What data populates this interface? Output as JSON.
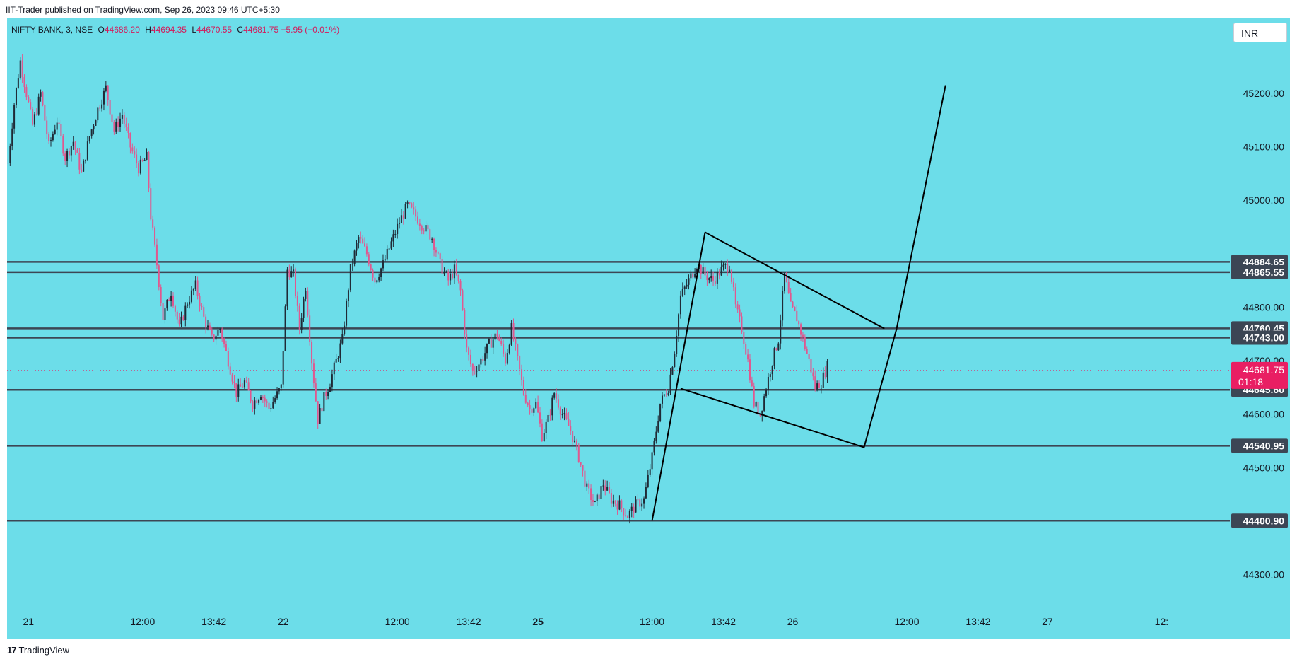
{
  "publish_info": "IIT-Trader published on TradingView.com, Sep 26, 2023 09:46 UTC+5:30",
  "symbol": {
    "name": "NIFTY BANK, 3, NSE",
    "open_label": "O",
    "open": "44686.20",
    "high_label": "H",
    "high": "44694.35",
    "low_label": "L",
    "low": "44670.55",
    "close_label": "C",
    "close": "44681.75",
    "change": "−5.95 (−0.01%)"
  },
  "currency": "INR",
  "footer_brand": "TradingView",
  "colors": {
    "background": "#6cdde9",
    "candle_up": "#1f2a36",
    "candle_down": "#e0588f",
    "level_line": "#3c4654",
    "price_badge": "#e91e63",
    "drawing": "#000000"
  },
  "chart_data": {
    "type": "candlestick",
    "ylim": [
      44240,
      45340
    ],
    "y_ticks": [
      "45200.00",
      "45100.00",
      "45000.00",
      "44800.00",
      "44700.00",
      "44600.00",
      "44500.00",
      "44300.00"
    ],
    "y_tick_values": [
      45200,
      45100,
      45000,
      44800,
      44700,
      44600,
      44500,
      44300
    ],
    "x_ticks": [
      {
        "label": "21",
        "bold": false,
        "i": 10
      },
      {
        "label": "12:00",
        "bold": false,
        "i": 66
      },
      {
        "label": "13:42",
        "bold": false,
        "i": 101
      },
      {
        "label": "22",
        "bold": false,
        "i": 135
      },
      {
        "label": "12:00",
        "bold": false,
        "i": 191
      },
      {
        "label": "13:42",
        "bold": false,
        "i": 226
      },
      {
        "label": "25",
        "bold": true,
        "i": 260
      },
      {
        "label": "12:00",
        "bold": false,
        "i": 316
      },
      {
        "label": "13:42",
        "bold": false,
        "i": 351
      },
      {
        "label": "26",
        "bold": false,
        "i": 385
      },
      {
        "label": "12:00",
        "bold": false,
        "i": 441
      },
      {
        "label": "13:42",
        "bold": false,
        "i": 476
      },
      {
        "label": "27",
        "bold": false,
        "i": 510
      },
      {
        "label": "12:",
        "bold": false,
        "i": 566
      }
    ],
    "levels": [
      {
        "label": "44884.65",
        "value": 44884.65
      },
      {
        "label": "44865.55",
        "value": 44865.55
      },
      {
        "label": "44760.45",
        "value": 44760.45
      },
      {
        "label": "44743.00",
        "value": 44743.0
      },
      {
        "label": "44645.60",
        "value": 44645.6
      },
      {
        "label": "44540.95",
        "value": 44540.95
      },
      {
        "label": "44400.90",
        "value": 44400.9
      }
    ],
    "last_price": {
      "value": 44681.75,
      "label": "44681.75",
      "countdown": "01:18"
    },
    "price_path": [
      [
        0,
        45070
      ],
      [
        3,
        45180
      ],
      [
        6,
        45260
      ],
      [
        9,
        45200
      ],
      [
        12,
        45140
      ],
      [
        16,
        45200
      ],
      [
        20,
        45100
      ],
      [
        24,
        45150
      ],
      [
        28,
        45080
      ],
      [
        32,
        45110
      ],
      [
        36,
        45050
      ],
      [
        40,
        45120
      ],
      [
        44,
        45170
      ],
      [
        48,
        45210
      ],
      [
        52,
        45130
      ],
      [
        56,
        45160
      ],
      [
        60,
        45100
      ],
      [
        64,
        45060
      ],
      [
        68,
        45080
      ],
      [
        70,
        44970
      ],
      [
        73,
        44880
      ],
      [
        76,
        44780
      ],
      [
        80,
        44830
      ],
      [
        84,
        44760
      ],
      [
        88,
        44810
      ],
      [
        92,
        44840
      ],
      [
        96,
        44780
      ],
      [
        100,
        44740
      ],
      [
        104,
        44760
      ],
      [
        108,
        44700
      ],
      [
        112,
        44640
      ],
      [
        116,
        44660
      ],
      [
        120,
        44620
      ],
      [
        124,
        44640
      ],
      [
        128,
        44610
      ],
      [
        131,
        44630
      ],
      [
        134,
        44650
      ],
      [
        137,
        44870
      ],
      [
        140,
        44860
      ],
      [
        143,
        44760
      ],
      [
        146,
        44840
      ],
      [
        149,
        44700
      ],
      [
        152,
        44590
      ],
      [
        155,
        44630
      ],
      [
        158,
        44660
      ],
      [
        161,
        44700
      ],
      [
        164,
        44740
      ],
      [
        168,
        44870
      ],
      [
        172,
        44930
      ],
      [
        176,
        44900
      ],
      [
        180,
        44850
      ],
      [
        184,
        44880
      ],
      [
        188,
        44920
      ],
      [
        192,
        44960
      ],
      [
        196,
        44990
      ],
      [
        200,
        44970
      ],
      [
        204,
        44950
      ],
      [
        208,
        44930
      ],
      [
        212,
        44880
      ],
      [
        216,
        44850
      ],
      [
        219,
        44870
      ],
      [
        222,
        44830
      ],
      [
        225,
        44720
      ],
      [
        228,
        44680
      ],
      [
        232,
        44700
      ],
      [
        236,
        44730
      ],
      [
        240,
        44750
      ],
      [
        244,
        44700
      ],
      [
        247,
        44760
      ],
      [
        250,
        44700
      ],
      [
        253,
        44640
      ],
      [
        256,
        44610
      ],
      [
        259,
        44620
      ],
      [
        262,
        44560
      ],
      [
        265,
        44590
      ],
      [
        268,
        44640
      ],
      [
        272,
        44600
      ],
      [
        276,
        44570
      ],
      [
        280,
        44520
      ],
      [
        284,
        44460
      ],
      [
        288,
        44430
      ],
      [
        292,
        44470
      ],
      [
        296,
        44440
      ],
      [
        300,
        44430
      ],
      [
        304,
        44410
      ],
      [
        308,
        44430
      ],
      [
        312,
        44440
      ],
      [
        316,
        44520
      ],
      [
        320,
        44620
      ],
      [
        324,
        44650
      ],
      [
        327,
        44720
      ],
      [
        330,
        44820
      ],
      [
        334,
        44850
      ],
      [
        338,
        44880
      ],
      [
        342,
        44860
      ],
      [
        346,
        44850
      ],
      [
        350,
        44870
      ],
      [
        354,
        44880
      ],
      [
        357,
        44800
      ],
      [
        360,
        44760
      ],
      [
        363,
        44700
      ],
      [
        366,
        44620
      ],
      [
        369,
        44600
      ],
      [
        372,
        44650
      ],
      [
        375,
        44700
      ],
      [
        378,
        44740
      ],
      [
        381,
        44860
      ],
      [
        384,
        44800
      ],
      [
        387,
        44780
      ],
      [
        390,
        44740
      ],
      [
        393,
        44700
      ],
      [
        396,
        44650
      ],
      [
        399,
        44660
      ],
      [
        402,
        44690
      ]
    ],
    "drawing_lines": [
      [
        [
          316,
          44400.9
        ],
        [
          342,
          44940
        ]
      ],
      [
        [
          342,
          44940
        ],
        [
          430,
          44760
        ]
      ],
      [
        [
          330,
          44648
        ],
        [
          420,
          44538
        ]
      ],
      [
        [
          420,
          44538
        ],
        [
          436,
          44760
        ]
      ],
      [
        [
          436,
          44760
        ],
        [
          460,
          45215
        ]
      ]
    ],
    "last_index": 402,
    "visible_slots": 600
  }
}
